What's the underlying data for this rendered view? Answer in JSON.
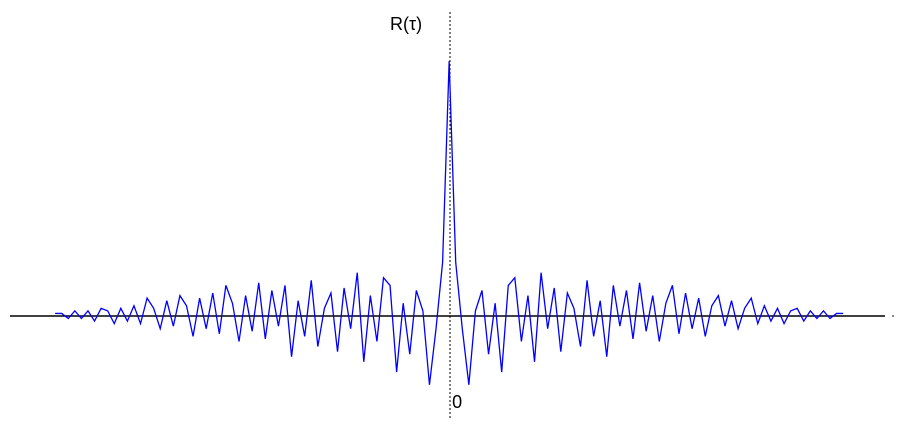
{
  "chart_data": {
    "type": "line",
    "y_label": "R(τ)",
    "x": [
      -60,
      -59,
      -58,
      -57,
      -56,
      -55,
      -54,
      -53,
      -52,
      -51,
      -50,
      -49,
      -48,
      -47,
      -46,
      -45,
      -44,
      -43,
      -42,
      -41,
      -40,
      -39,
      -38,
      -37,
      -36,
      -35,
      -34,
      -33,
      -32,
      -31,
      -30,
      -29,
      -28,
      -27,
      -26,
      -25,
      -24,
      -23,
      -22,
      -21,
      -20,
      -19,
      -18,
      -17,
      -16,
      -15,
      -14,
      -13,
      -12,
      -11,
      -10,
      -9,
      -8,
      -7,
      -6,
      -5,
      -4,
      -3,
      -2,
      -1,
      0,
      1,
      2,
      3,
      4,
      5,
      6,
      7,
      8,
      9,
      10,
      11,
      12,
      13,
      14,
      15,
      16,
      17,
      18,
      19,
      20,
      21,
      22,
      23,
      24,
      25,
      26,
      27,
      28,
      29,
      30,
      31,
      32,
      33,
      34,
      35,
      36,
      37,
      38,
      39,
      40,
      41,
      42,
      43,
      44,
      45,
      46,
      47,
      48,
      49,
      50,
      51,
      52,
      53,
      54,
      55,
      56,
      57,
      58,
      59,
      60
    ],
    "series": [
      {
        "color": "#0000ff",
        "values": [
          0.01,
          0.01,
          -0.01,
          0.02,
          -0.01,
          0.02,
          -0.02,
          0.03,
          0.02,
          -0.03,
          0.03,
          -0.02,
          0.04,
          -0.03,
          0.07,
          0.03,
          -0.05,
          0.06,
          -0.04,
          0.08,
          0.04,
          -0.08,
          0.07,
          -0.05,
          0.09,
          -0.07,
          0.12,
          0.05,
          -0.1,
          0.08,
          -0.06,
          0.13,
          -0.09,
          0.1,
          -0.04,
          0.12,
          -0.16,
          0.06,
          -0.08,
          0.14,
          -0.12,
          0.03,
          0.09,
          -0.14,
          0.11,
          -0.05,
          0.17,
          -0.18,
          0.08,
          -0.1,
          0.15,
          0.12,
          -0.22,
          0.05,
          -0.15,
          0.1,
          0.02,
          -0.27,
          -0.05,
          0.21,
          1.0,
          0.21,
          -0.05,
          -0.27,
          0.02,
          0.1,
          -0.15,
          0.05,
          -0.22,
          0.12,
          0.15,
          -0.1,
          0.08,
          -0.18,
          0.17,
          -0.05,
          0.11,
          -0.14,
          0.09,
          0.03,
          -0.12,
          0.14,
          -0.08,
          0.06,
          -0.16,
          0.12,
          -0.04,
          0.1,
          -0.09,
          0.13,
          -0.06,
          0.08,
          -0.1,
          0.05,
          0.12,
          -0.07,
          0.09,
          -0.05,
          0.07,
          -0.08,
          0.04,
          0.08,
          -0.04,
          0.06,
          -0.05,
          0.03,
          0.07,
          -0.03,
          0.04,
          -0.02,
          0.03,
          -0.03,
          0.02,
          0.03,
          -0.02,
          0.02,
          -0.01,
          0.02,
          -0.01,
          0.01,
          0.01
        ]
      }
    ],
    "xlim": [
      -68.4,
      68.2
    ],
    "ylim": [
      -0.42,
      1.24
    ],
    "xticks": [
      0
    ]
  }
}
